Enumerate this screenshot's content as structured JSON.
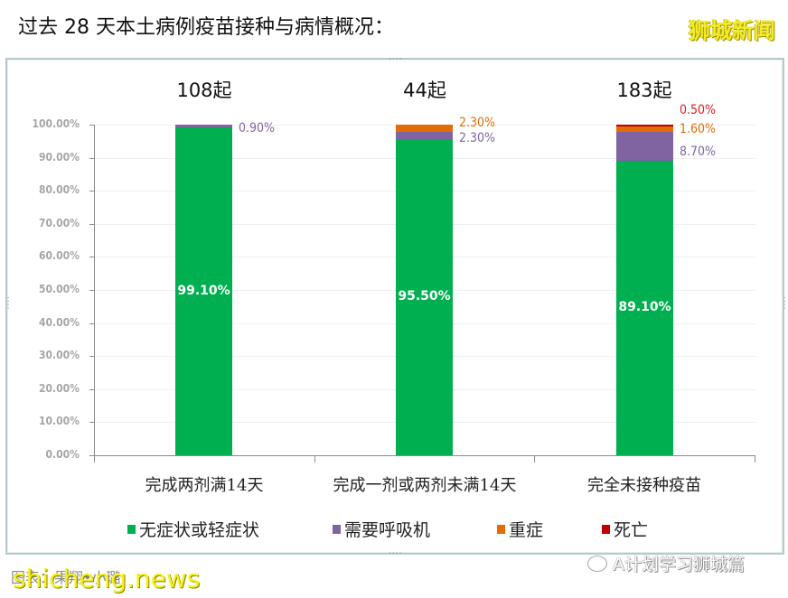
{
  "header": {
    "title": "过去 28 天本土病例疫苗接种与病情概况：",
    "brand": "狮城新闻"
  },
  "colors": {
    "mild": "#00b050",
    "ventilator": "#8064a2",
    "severe": "#e36c09",
    "death": "#c00000",
    "axis_text": "#a6a6a6"
  },
  "chart_data": {
    "type": "bar",
    "stacked": true,
    "title": "过去 28 天本土病例疫苗接种与病情概况：",
    "xlabel": "",
    "ylabel": "",
    "ylim": [
      0,
      100
    ],
    "yticks": [
      "0.00%",
      "10.00%",
      "20.00%",
      "30.00%",
      "40.00%",
      "50.00%",
      "60.00%",
      "70.00%",
      "80.00%",
      "90.00%",
      "100.00%"
    ],
    "grid": true,
    "legend_position": "bottom",
    "categories": [
      "完成两剂满14天",
      "完成一剂或两剂未满14天",
      "完全未接种疫苗"
    ],
    "case_counts": [
      "108起",
      "44起",
      "183起"
    ],
    "series": [
      {
        "name": "无症状或轻症状",
        "color": "#00b050",
        "values": [
          99.1,
          95.5,
          89.1
        ],
        "labels": [
          "99.10%",
          "95.50%",
          "89.10%"
        ]
      },
      {
        "name": "需要呼吸机",
        "color": "#8064a2",
        "values": [
          0.9,
          2.3,
          8.7
        ],
        "labels": [
          "0.90%",
          "2.30%",
          "8.70%"
        ]
      },
      {
        "name": "重症",
        "color": "#e36c09",
        "values": [
          0,
          2.3,
          1.6
        ],
        "labels": [
          "",
          "2.30%",
          "1.60%"
        ]
      },
      {
        "name": "死亡",
        "color": "#c00000",
        "values": [
          0,
          0,
          0.5
        ],
        "labels": [
          "",
          "",
          "0.50%"
        ]
      }
    ]
  },
  "footer": {
    "credit": "图表：果翔•小璐",
    "watermark": "shicheng.news",
    "wechat_account": "A计划学习狮城篇"
  }
}
